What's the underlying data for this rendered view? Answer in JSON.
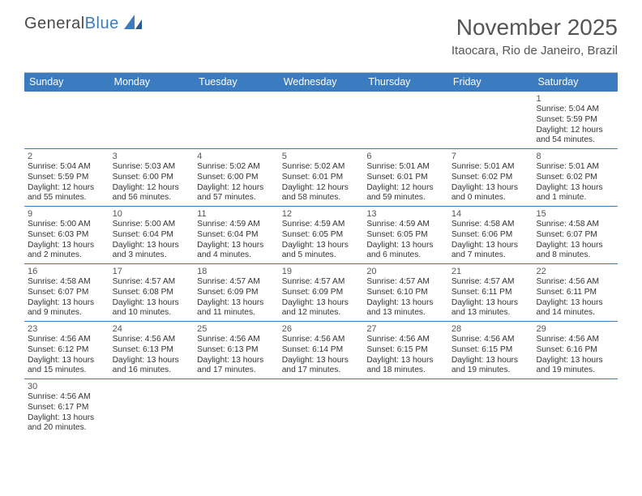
{
  "logo": {
    "text_general": "General",
    "text_blue": "Blue"
  },
  "header": {
    "month_title": "November 2025",
    "location": "Itaocara, Rio de Janeiro, Brazil"
  },
  "colors": {
    "header_bg": "#3b7bbf",
    "week_divider": "#3b7bbf",
    "text": "#333333",
    "title_text": "#555555"
  },
  "day_names": [
    "Sunday",
    "Monday",
    "Tuesday",
    "Wednesday",
    "Thursday",
    "Friday",
    "Saturday"
  ],
  "weeks": [
    [
      null,
      null,
      null,
      null,
      null,
      null,
      {
        "n": "1",
        "sr": "Sunrise: 5:04 AM",
        "ss": "Sunset: 5:59 PM",
        "dl": "Daylight: 12 hours and 54 minutes."
      }
    ],
    [
      {
        "n": "2",
        "sr": "Sunrise: 5:04 AM",
        "ss": "Sunset: 5:59 PM",
        "dl": "Daylight: 12 hours and 55 minutes."
      },
      {
        "n": "3",
        "sr": "Sunrise: 5:03 AM",
        "ss": "Sunset: 6:00 PM",
        "dl": "Daylight: 12 hours and 56 minutes."
      },
      {
        "n": "4",
        "sr": "Sunrise: 5:02 AM",
        "ss": "Sunset: 6:00 PM",
        "dl": "Daylight: 12 hours and 57 minutes."
      },
      {
        "n": "5",
        "sr": "Sunrise: 5:02 AM",
        "ss": "Sunset: 6:01 PM",
        "dl": "Daylight: 12 hours and 58 minutes."
      },
      {
        "n": "6",
        "sr": "Sunrise: 5:01 AM",
        "ss": "Sunset: 6:01 PM",
        "dl": "Daylight: 12 hours and 59 minutes."
      },
      {
        "n": "7",
        "sr": "Sunrise: 5:01 AM",
        "ss": "Sunset: 6:02 PM",
        "dl": "Daylight: 13 hours and 0 minutes."
      },
      {
        "n": "8",
        "sr": "Sunrise: 5:01 AM",
        "ss": "Sunset: 6:02 PM",
        "dl": "Daylight: 13 hours and 1 minute."
      }
    ],
    [
      {
        "n": "9",
        "sr": "Sunrise: 5:00 AM",
        "ss": "Sunset: 6:03 PM",
        "dl": "Daylight: 13 hours and 2 minutes."
      },
      {
        "n": "10",
        "sr": "Sunrise: 5:00 AM",
        "ss": "Sunset: 6:04 PM",
        "dl": "Daylight: 13 hours and 3 minutes."
      },
      {
        "n": "11",
        "sr": "Sunrise: 4:59 AM",
        "ss": "Sunset: 6:04 PM",
        "dl": "Daylight: 13 hours and 4 minutes."
      },
      {
        "n": "12",
        "sr": "Sunrise: 4:59 AM",
        "ss": "Sunset: 6:05 PM",
        "dl": "Daylight: 13 hours and 5 minutes."
      },
      {
        "n": "13",
        "sr": "Sunrise: 4:59 AM",
        "ss": "Sunset: 6:05 PM",
        "dl": "Daylight: 13 hours and 6 minutes."
      },
      {
        "n": "14",
        "sr": "Sunrise: 4:58 AM",
        "ss": "Sunset: 6:06 PM",
        "dl": "Daylight: 13 hours and 7 minutes."
      },
      {
        "n": "15",
        "sr": "Sunrise: 4:58 AM",
        "ss": "Sunset: 6:07 PM",
        "dl": "Daylight: 13 hours and 8 minutes."
      }
    ],
    [
      {
        "n": "16",
        "sr": "Sunrise: 4:58 AM",
        "ss": "Sunset: 6:07 PM",
        "dl": "Daylight: 13 hours and 9 minutes."
      },
      {
        "n": "17",
        "sr": "Sunrise: 4:57 AM",
        "ss": "Sunset: 6:08 PM",
        "dl": "Daylight: 13 hours and 10 minutes."
      },
      {
        "n": "18",
        "sr": "Sunrise: 4:57 AM",
        "ss": "Sunset: 6:09 PM",
        "dl": "Daylight: 13 hours and 11 minutes."
      },
      {
        "n": "19",
        "sr": "Sunrise: 4:57 AM",
        "ss": "Sunset: 6:09 PM",
        "dl": "Daylight: 13 hours and 12 minutes."
      },
      {
        "n": "20",
        "sr": "Sunrise: 4:57 AM",
        "ss": "Sunset: 6:10 PM",
        "dl": "Daylight: 13 hours and 13 minutes."
      },
      {
        "n": "21",
        "sr": "Sunrise: 4:57 AM",
        "ss": "Sunset: 6:11 PM",
        "dl": "Daylight: 13 hours and 13 minutes."
      },
      {
        "n": "22",
        "sr": "Sunrise: 4:56 AM",
        "ss": "Sunset: 6:11 PM",
        "dl": "Daylight: 13 hours and 14 minutes."
      }
    ],
    [
      {
        "n": "23",
        "sr": "Sunrise: 4:56 AM",
        "ss": "Sunset: 6:12 PM",
        "dl": "Daylight: 13 hours and 15 minutes."
      },
      {
        "n": "24",
        "sr": "Sunrise: 4:56 AM",
        "ss": "Sunset: 6:13 PM",
        "dl": "Daylight: 13 hours and 16 minutes."
      },
      {
        "n": "25",
        "sr": "Sunrise: 4:56 AM",
        "ss": "Sunset: 6:13 PM",
        "dl": "Daylight: 13 hours and 17 minutes."
      },
      {
        "n": "26",
        "sr": "Sunrise: 4:56 AM",
        "ss": "Sunset: 6:14 PM",
        "dl": "Daylight: 13 hours and 17 minutes."
      },
      {
        "n": "27",
        "sr": "Sunrise: 4:56 AM",
        "ss": "Sunset: 6:15 PM",
        "dl": "Daylight: 13 hours and 18 minutes."
      },
      {
        "n": "28",
        "sr": "Sunrise: 4:56 AM",
        "ss": "Sunset: 6:15 PM",
        "dl": "Daylight: 13 hours and 19 minutes."
      },
      {
        "n": "29",
        "sr": "Sunrise: 4:56 AM",
        "ss": "Sunset: 6:16 PM",
        "dl": "Daylight: 13 hours and 19 minutes."
      }
    ],
    [
      {
        "n": "30",
        "sr": "Sunrise: 4:56 AM",
        "ss": "Sunset: 6:17 PM",
        "dl": "Daylight: 13 hours and 20 minutes."
      },
      null,
      null,
      null,
      null,
      null,
      null
    ]
  ]
}
